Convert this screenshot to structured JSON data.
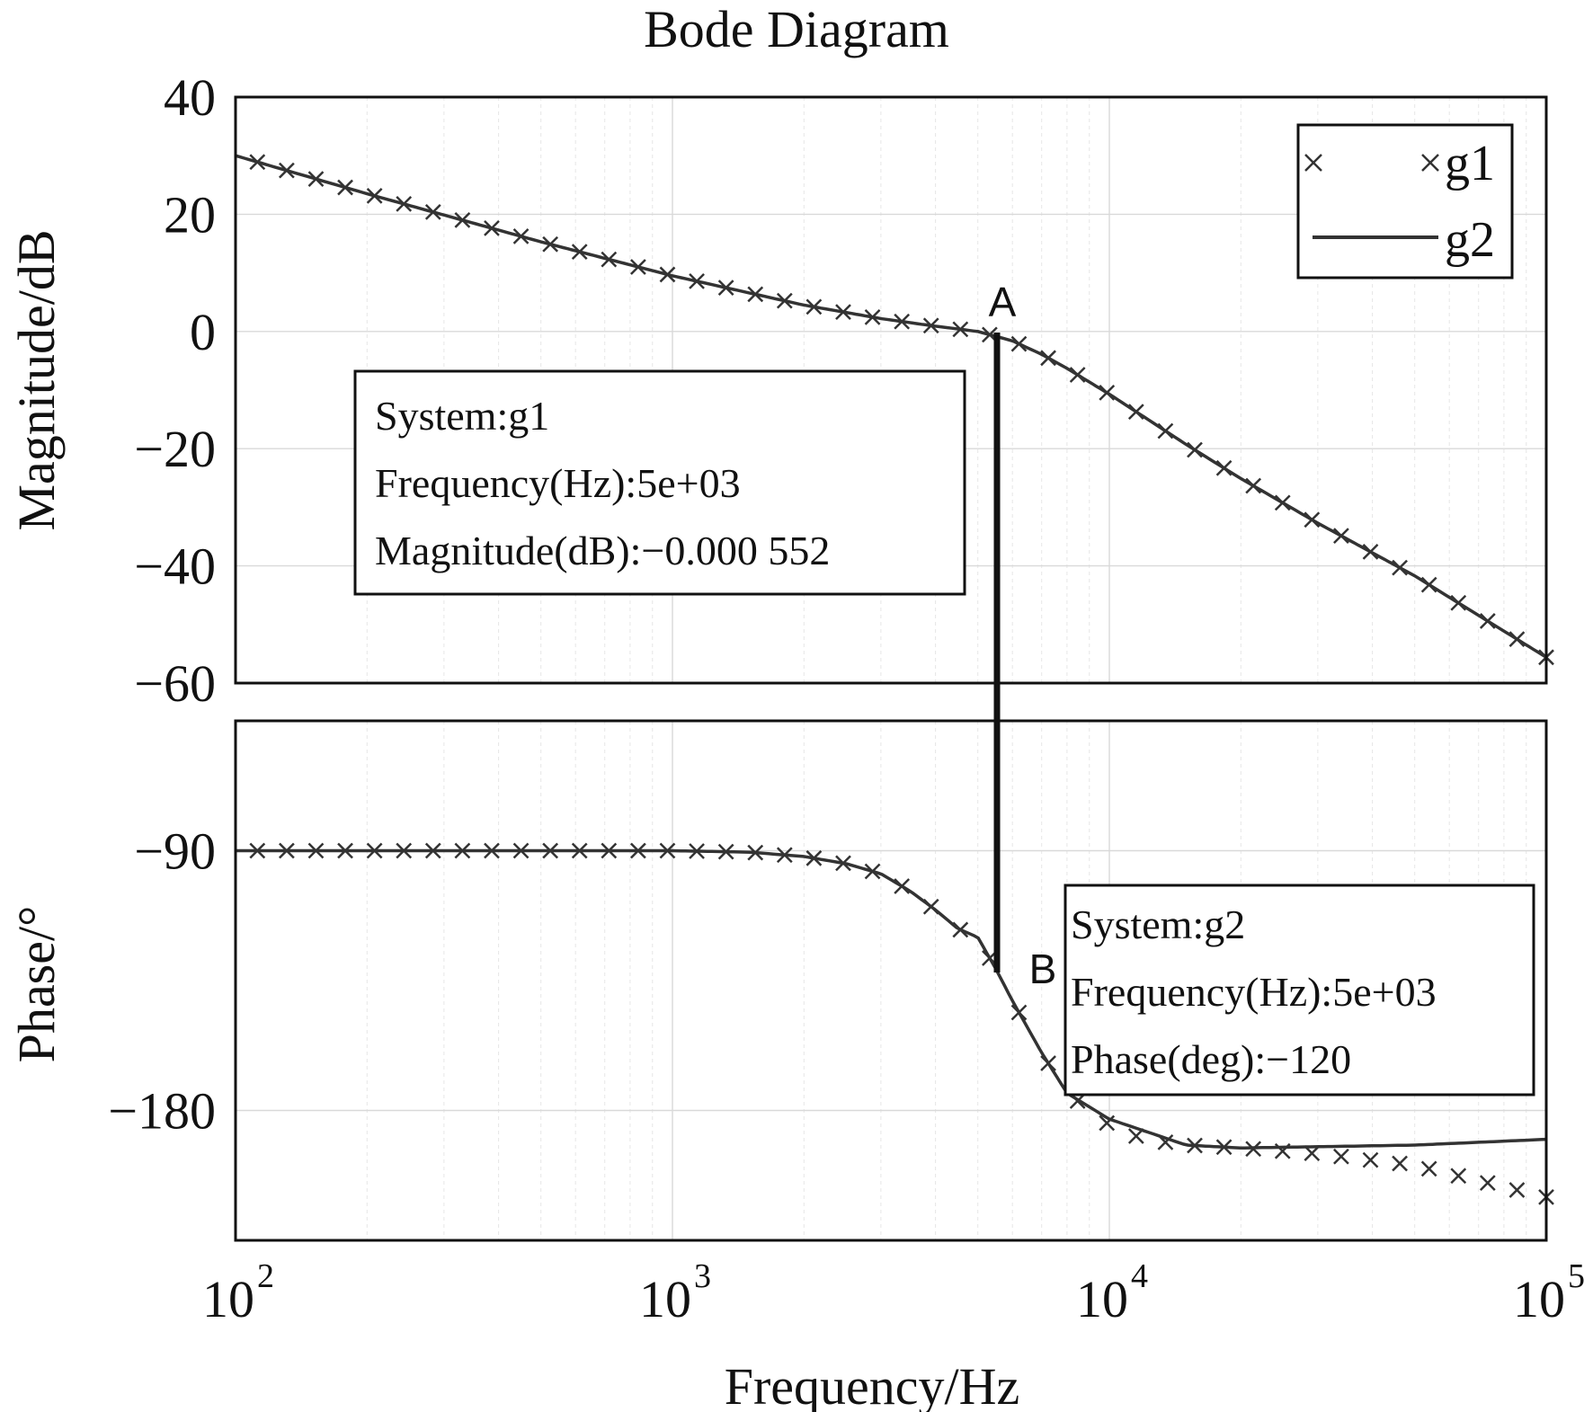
{
  "chart_data": {
    "type": "line",
    "title": "Bode Diagram",
    "xlabel": "Frequency/Hz",
    "x_scale": "log",
    "xlim": [
      100,
      100000
    ],
    "x_tick_labels": [
      {
        "value": 100,
        "base": "10",
        "exp": "2"
      },
      {
        "value": 1000,
        "base": "10",
        "exp": "3"
      },
      {
        "value": 10000,
        "base": "10",
        "exp": "4"
      },
      {
        "value": 100000,
        "base": "10",
        "exp": "5"
      }
    ],
    "grid": true,
    "legend_position": "top-right",
    "legend": [
      {
        "name": "g1",
        "style": "x-markers",
        "color": "#333333"
      },
      {
        "name": "g2",
        "style": "solid-line",
        "color": "#333333"
      }
    ],
    "magnitude": {
      "ylabel": "Magnitude/dB",
      "ylim": [
        -60,
        40
      ],
      "y_ticks": [
        40,
        20,
        0,
        -20,
        -40,
        -60
      ],
      "y_tick_labels": [
        "40",
        "20",
        "0",
        "−20",
        "−40",
        "−60"
      ],
      "series": [
        {
          "name": "g2",
          "x": [
            100,
            200,
            500,
            1000,
            2000,
            3000,
            4000,
            5000,
            6000,
            7000,
            8000,
            10000,
            15000,
            20000,
            30000,
            50000,
            100000
          ],
          "y": [
            30,
            23.5,
            15.3,
            9.5,
            4.5,
            2.2,
            0.9,
            0,
            -1.6,
            -3.9,
            -6.3,
            -10.7,
            -19.3,
            -25.1,
            -32.7,
            -41.7,
            -55.6
          ]
        },
        {
          "name": "g1",
          "x": [
            100,
            200,
            500,
            1000,
            2000,
            3000,
            4000,
            5000,
            6000,
            7000,
            8000,
            10000,
            15000,
            20000,
            30000,
            50000,
            100000
          ],
          "y": [
            30,
            23.5,
            15.3,
            9.5,
            4.5,
            2.2,
            0.9,
            0,
            -1.6,
            -3.9,
            -6.3,
            -10.7,
            -19.3,
            -25.1,
            -32.7,
            -41.7,
            -55.6
          ]
        }
      ]
    },
    "phase": {
      "ylabel": "Phase/°",
      "ylim": [
        -225,
        -45
      ],
      "y_ticks": [
        -90,
        -180
      ],
      "y_tick_labels": [
        "−90",
        "−180"
      ],
      "series": [
        {
          "name": "g2",
          "x": [
            100,
            1000,
            1500,
            2000,
            2500,
            3000,
            3500,
            4000,
            4500,
            5000,
            5500,
            6000,
            7000,
            8000,
            10000,
            15000,
            20000,
            50000,
            100000
          ],
          "y": [
            -90,
            -90,
            -90.5,
            -92,
            -94.5,
            -98,
            -104,
            -110.5,
            -117,
            -120,
            -131,
            -142,
            -160,
            -174,
            -183,
            -192,
            -193,
            -192,
            -190
          ]
        },
        {
          "name": "g1",
          "x": [
            100,
            1000,
            1500,
            2000,
            2500,
            3000,
            3500,
            4000,
            4500,
            5000,
            5500,
            6000,
            7000,
            8000,
            10000,
            12000,
            15000,
            20000,
            30000,
            50000,
            100000
          ],
          "y": [
            -90,
            -90,
            -90.5,
            -92,
            -94.5,
            -98,
            -104,
            -110.5,
            -117,
            -120,
            -131,
            -142,
            -160,
            -174,
            -185,
            -190,
            -192,
            -193,
            -195,
            -199,
            -210
          ]
        }
      ]
    },
    "annotations": [
      {
        "label": "A",
        "x": 5000,
        "y_db": -0.000552
      },
      {
        "label": "B",
        "x": 5000,
        "y_deg": -120
      }
    ],
    "datatips": [
      {
        "lines": [
          "System:g1",
          "Frequency(Hz):5e+03",
          "Magnitude(dB):−0.000 552"
        ]
      },
      {
        "lines": [
          "System:g2",
          "Frequency(Hz):5e+03",
          "Phase(deg):−120"
        ]
      }
    ]
  }
}
